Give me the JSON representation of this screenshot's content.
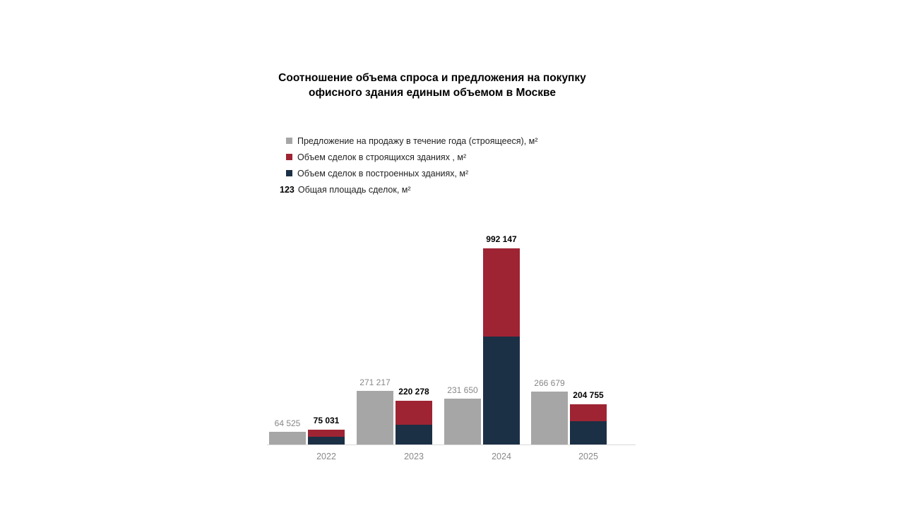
{
  "page": {
    "background": "#FFFFFF"
  },
  "title": {
    "line1": "Соотношение объема спроса и предложения на покупку",
    "line2": "офисного здания единым объемом в Москве"
  },
  "legend": {
    "items": [
      {
        "label": "Предложение на продажу в течение года (строящееся), м²",
        "marker": "square",
        "color": "#A6A6A6"
      },
      {
        "label": "Объем сделок в строящихся зданиях , м²",
        "marker": "square",
        "color": "#9E2433"
      },
      {
        "label": "Объем сделок в построенных зданиях, м²",
        "marker": "square",
        "color": "#1C3045"
      },
      {
        "label": "Общая площадь сделок, м²",
        "marker": "text",
        "marker_text": "123"
      }
    ]
  },
  "chart_data": {
    "type": "bar",
    "variant": "clustered-pair-with-stacked",
    "title": "Соотношение объема спроса и предложения на покупку офисного здания единым объемом в Москве",
    "categories": [
      "2022",
      "2023",
      "2024",
      "2025"
    ],
    "series": [
      {
        "name": "Предложение на продажу в течение года (строящееся), м²",
        "role": "supply",
        "color": "#A6A6A6",
        "values": [
          64525,
          271217,
          231650,
          266679
        ],
        "labels": [
          "64 525",
          "271 217",
          "231 650",
          "266 679"
        ],
        "label_color": "#878787"
      },
      {
        "name": "Объем сделок в строящихся зданиях , м²",
        "role": "deals-under-construction",
        "color": "#9E2433",
        "stack": "deals",
        "values": [
          36031,
          120278,
          445147,
          85755
        ],
        "values_estimated_from_pixels": true
      },
      {
        "name": "Объем сделок в построенных зданиях, м²",
        "role": "deals-built",
        "color": "#1C3045",
        "stack": "deals",
        "values": [
          39000,
          100000,
          547000,
          119000
        ],
        "values_estimated_from_pixels": true
      }
    ],
    "stack_totals": {
      "name": "Общая площадь сделок, м²",
      "values": [
        75031,
        220278,
        992147,
        204755
      ],
      "labels": [
        "75 031",
        "220 278",
        "992 147",
        "204 755"
      ],
      "label_color": "#000000"
    },
    "axes": {
      "x_tick_labels": [
        "2022",
        "2023",
        "2024",
        "2025"
      ],
      "tick_label_color": "#898989",
      "baseline_color": "#D9D9D9",
      "y_axis_visible": false,
      "gridlines": false
    },
    "legend_position": "upper-left-below-title"
  }
}
